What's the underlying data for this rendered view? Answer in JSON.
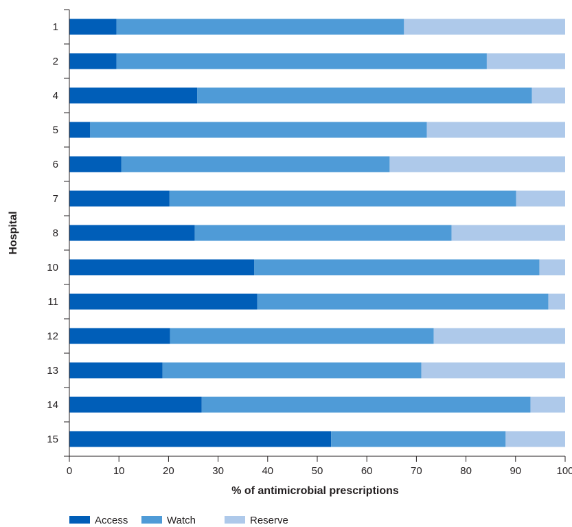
{
  "chart_data": {
    "type": "bar",
    "orientation": "horizontal",
    "stacked": true,
    "categories": [
      "1",
      "2",
      "4",
      "5",
      "6",
      "7",
      "8",
      "10",
      "11",
      "12",
      "13",
      "14",
      "15"
    ],
    "series": [
      {
        "name": "Access",
        "color": "#005eb8",
        "values": [
          9.5,
          9.5,
          25.8,
          4.2,
          10.5,
          20.2,
          25.3,
          37.3,
          37.9,
          20.3,
          18.8,
          26.7,
          52.8
        ]
      },
      {
        "name": "Watch",
        "color": "#4f9bd7",
        "values": [
          58.0,
          74.7,
          67.5,
          67.9,
          54.1,
          69.9,
          51.8,
          57.5,
          58.7,
          53.2,
          52.2,
          66.3,
          35.2
        ]
      },
      {
        "name": "Reserve",
        "color": "#aec9ea",
        "values": [
          32.5,
          15.8,
          6.7,
          27.9,
          35.4,
          9.9,
          22.9,
          5.2,
          3.4,
          26.5,
          29.0,
          7.0,
          12.0
        ]
      }
    ],
    "xlabel": "% of antimicrobial prescriptions",
    "ylabel": "Hospital",
    "xlim": [
      0,
      100
    ],
    "xticks": [
      0,
      10,
      20,
      30,
      40,
      50,
      60,
      70,
      80,
      90,
      100
    ],
    "grid": false,
    "legend_position": "bottom-left"
  }
}
